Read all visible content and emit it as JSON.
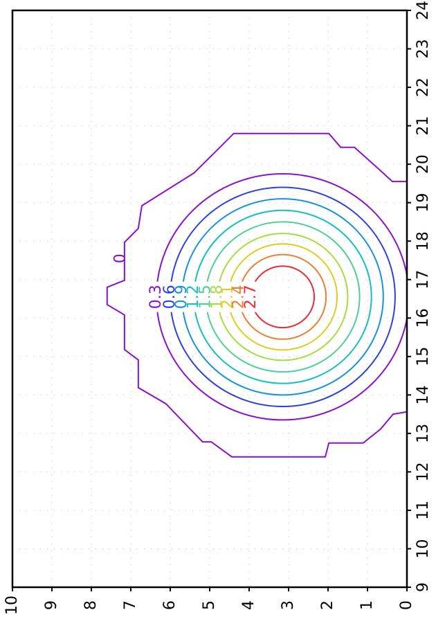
{
  "chart_data": {
    "type": "contour",
    "xlim": [
      9,
      24
    ],
    "xticks": [
      9,
      10,
      11,
      12,
      13,
      14,
      15,
      16,
      17,
      18,
      19,
      20,
      21,
      22,
      23,
      24
    ],
    "ylim": [
      0,
      10
    ],
    "yticks": [
      0,
      1,
      2,
      3,
      4,
      5,
      6,
      7,
      8,
      9,
      10
    ],
    "grid": true,
    "center": [
      16.55,
      3.15
    ],
    "zero_contour": {
      "label": "0",
      "level": 0,
      "color": "#8a10d0",
      "label_at": [
        17.55,
        7.25
      ],
      "x": [
        19.55,
        19.55,
        19.86,
        20.44,
        20.44,
        20.8,
        20.8,
        20.44,
        19.77,
        18.92,
        18.33,
        17.97,
        16.98,
        16.8,
        16.35,
        16.08,
        15.18,
        14.91,
        14.19,
        13.77,
        12.78,
        12.78,
        12.39,
        12.39,
        12.75,
        12.75,
        13.11,
        13.5,
        13.56
      ],
      "y": [
        0,
        0.37,
        0.7,
        1.33,
        1.68,
        1.98,
        4.39,
        4.74,
        5.4,
        6.72,
        6.81,
        7.16,
        7.16,
        7.6,
        7.6,
        7.16,
        7.16,
        6.81,
        6.81,
        6.11,
        5.18,
        4.96,
        4.44,
        2.07,
        1.98,
        1.11,
        0.67,
        0.35,
        0
      ]
    },
    "contours": [
      {
        "label": "0.3",
        "level": 0.3,
        "radius": 3.2,
        "color": "#8a10d0"
      },
      {
        "label": "0.6",
        "level": 0.6,
        "radius": 2.85,
        "color": "#2a40e8"
      },
      {
        "label": "0.9",
        "level": 0.9,
        "radius": 2.55,
        "color": "#1890e0"
      },
      {
        "label": "1.2",
        "level": 1.2,
        "radius": 2.25,
        "color": "#10c0c0"
      },
      {
        "label": "1.5",
        "level": 1.5,
        "radius": 1.95,
        "color": "#50d090"
      },
      {
        "label": "1.8",
        "level": 1.8,
        "radius": 1.65,
        "color": "#a8dc40"
      },
      {
        "label": "2.1",
        "level": 2.1,
        "radius": 1.38,
        "color": "#e0cc20"
      },
      {
        "label": "2.4",
        "level": 2.4,
        "radius": 1.1,
        "color": "#f07c30"
      },
      {
        "label": "2.7",
        "level": 2.7,
        "radius": 0.8,
        "color": "#f02838"
      }
    ]
  }
}
